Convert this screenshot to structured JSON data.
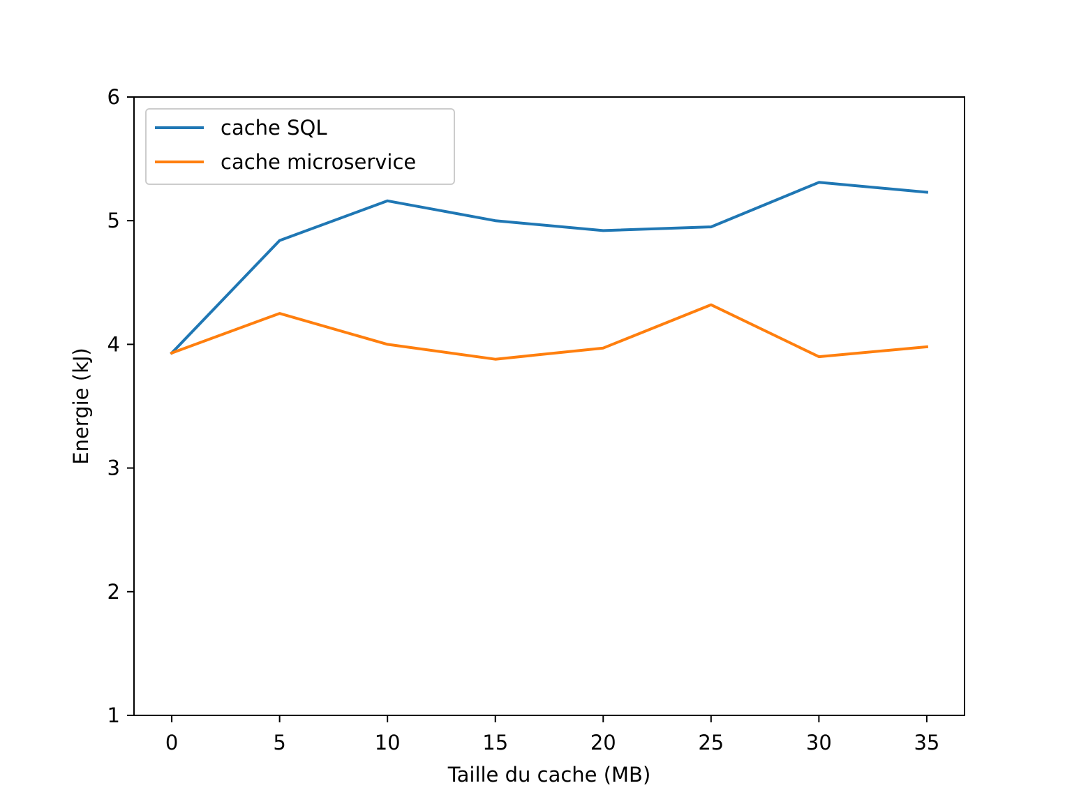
{
  "chart_data": {
    "type": "line",
    "title": "",
    "xlabel": "Taille du cache (MB)",
    "ylabel": "Energie (kJ)",
    "x": [
      0,
      5,
      10,
      15,
      20,
      25,
      30,
      35
    ],
    "xlim": [
      -1.75,
      36.75
    ],
    "ylim": [
      1,
      6
    ],
    "xticks": [
      0,
      5,
      10,
      15,
      20,
      25,
      30,
      35
    ],
    "yticks": [
      1,
      2,
      3,
      4,
      5,
      6
    ],
    "grid": false,
    "legend_position": "upper-left",
    "series": [
      {
        "name": "cache SQL",
        "color": "#1f77b4",
        "values": [
          3.93,
          4.84,
          5.16,
          5.0,
          4.92,
          4.95,
          5.31,
          5.23
        ]
      },
      {
        "name": "cache microservice",
        "color": "#ff7f0e",
        "values": [
          3.93,
          4.25,
          4.0,
          3.88,
          3.97,
          4.32,
          3.9,
          3.98
        ]
      }
    ]
  }
}
